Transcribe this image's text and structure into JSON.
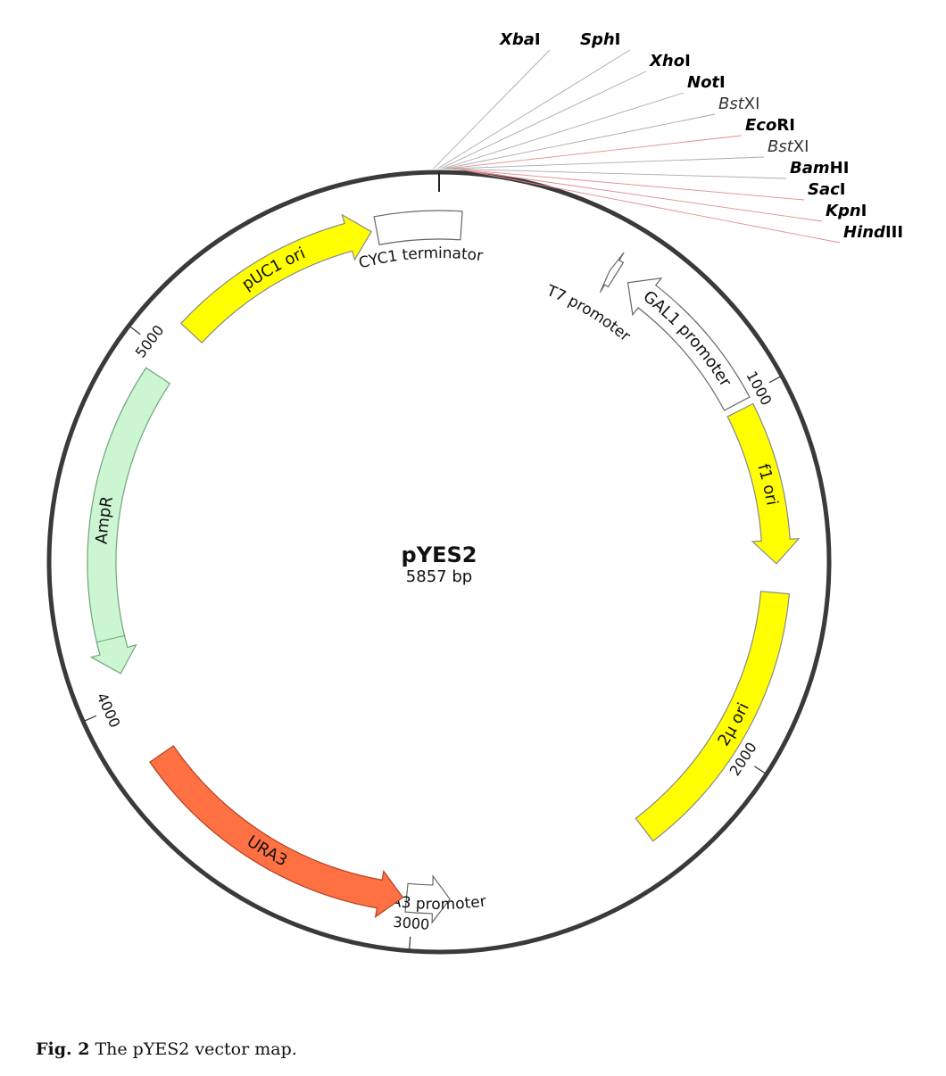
{
  "plasmid": {
    "name": "pYES2",
    "size_label": "5857 bp",
    "length_bp": 5857
  },
  "colors": {
    "backbone": "#3a3a3a",
    "pUC1_ori": "#ffff00",
    "f1_ori": "#ffff00",
    "two_mu_ori": "#ffff00",
    "AmpR": "#ccf5d2",
    "URA3": "#ff7043",
    "promoter_outline": "#ffffff",
    "enzyme_line_gray": "#aaaaaa",
    "enzyme_line_red": "#e38b8b"
  },
  "features": [
    {
      "id": "cyc1",
      "label": "CYC1 terminator",
      "start": 5665,
      "end": 5900,
      "direction": "none",
      "color": "#ffffff",
      "stroke": "#666666",
      "label_mode": "outside"
    },
    {
      "id": "t7",
      "label": "T7 promoter",
      "start": 475,
      "end": 495,
      "direction": "reverse",
      "color": "#ffffff",
      "stroke": "#666666",
      "label_mode": "outside"
    },
    {
      "id": "gal1",
      "label": "GAL1 promoter",
      "start": 535,
      "end": 990,
      "direction": "reverse",
      "color": "#ffffff",
      "stroke": "#666666",
      "label_mode": "inside"
    },
    {
      "id": "f1",
      "label": "f1 ori",
      "start": 1010,
      "end": 1450,
      "direction": "forward",
      "color": "#ffff00",
      "stroke": "#888888",
      "label_mode": "inside"
    },
    {
      "id": "two_mu",
      "label": "2μ ori",
      "start": 1530,
      "end": 2300,
      "direction": "none",
      "color": "#ffff00",
      "stroke": "#888888",
      "label_mode": "inside"
    },
    {
      "id": "ura3p",
      "label": "URA3 promoter",
      "start": 2880,
      "end": 3000,
      "direction": "reverse",
      "color": "#ffffff",
      "stroke": "#666666",
      "label_mode": "outside"
    },
    {
      "id": "ura3",
      "label": "URA3",
      "start": 3010,
      "end": 3810,
      "direction": "reverse",
      "color": "#ff7043",
      "stroke": "#b04020",
      "label_mode": "inside"
    },
    {
      "id": "ampr",
      "label": "AmpR",
      "start": 4060,
      "end": 4920,
      "direction": "reverse",
      "color": "#ccf5d2",
      "stroke": "#6fa47a",
      "label_mode": "inside"
    },
    {
      "id": "puc",
      "label": "pUC1 ori",
      "start": 5070,
      "end": 5650,
      "direction": "forward",
      "color": "#ffff00",
      "stroke": "#888888",
      "label_mode": "inside"
    }
  ],
  "ticks": [
    {
      "label": "1000"
    },
    {
      "label": "2000"
    },
    {
      "label": "3000"
    },
    {
      "label": "4000"
    },
    {
      "label": "5000"
    }
  ],
  "restriction_sites": [
    {
      "name": "XbaI",
      "position": 5825,
      "italic_part": "Xba",
      "roman_part": "I",
      "bold": true,
      "line": "gray"
    },
    {
      "name": "SphI",
      "position": 5835,
      "italic_part": "Sph",
      "roman_part": "I",
      "bold": true,
      "line": "gray"
    },
    {
      "name": "XhoI",
      "position": 5842,
      "italic_part": "Xho",
      "roman_part": "I",
      "bold": true,
      "line": "gray"
    },
    {
      "name": "NotI",
      "position": 5848,
      "italic_part": "Not",
      "roman_part": "I",
      "bold": true,
      "line": "gray"
    },
    {
      "name": "BstXI",
      "position": 5852,
      "italic_part": "Bst",
      "roman_part": "XI",
      "bold": false,
      "line": "gray"
    },
    {
      "name": "EcoRI",
      "position": 1,
      "italic_part": "Eco",
      "roman_part": "RI",
      "bold": true,
      "line": "red"
    },
    {
      "name": "BstXI",
      "position": 5,
      "italic_part": "Bst",
      "roman_part": "XI",
      "bold": false,
      "line": "gray"
    },
    {
      "name": "BamHI",
      "position": 10,
      "italic_part": "Bam",
      "roman_part": "HI",
      "bold": true,
      "line": "gray"
    },
    {
      "name": "SacI",
      "position": 16,
      "italic_part": "Sac",
      "roman_part": "I",
      "bold": true,
      "line": "red"
    },
    {
      "name": "KpnI",
      "position": 22,
      "italic_part": "Kpn",
      "roman_part": "I",
      "bold": true,
      "line": "red"
    },
    {
      "name": "HindIII",
      "position": 28,
      "italic_part": "Hind",
      "roman_part": "III",
      "bold": true,
      "line": "red"
    }
  ],
  "caption": {
    "prefix": "Fig. 2",
    "text": " The pYES2 vector map."
  }
}
